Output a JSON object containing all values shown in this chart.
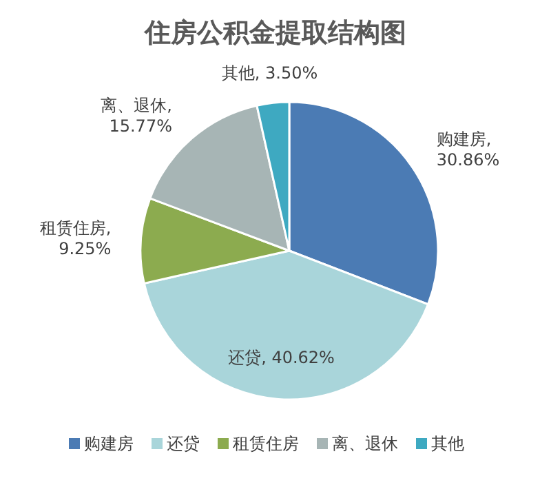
{
  "chart_data": {
    "type": "pie",
    "title": "住房公积金提取结构图",
    "categories": [
      "购建房",
      "还贷",
      "租赁住房",
      "离、退休",
      "其他"
    ],
    "values": [
      30.86,
      40.62,
      9.25,
      15.77,
      3.5
    ],
    "colors": [
      "#4b7bb4",
      "#a9d5da",
      "#8cab4f",
      "#a7b5b5",
      "#3ea9c1"
    ],
    "value_labels": [
      "购建房,\n30.86%",
      "还贷, 40.62%",
      "租赁住房,\n9.25%",
      "离、退休,\n15.77%",
      "其他, 3.50%"
    ],
    "legend": "bottom"
  }
}
